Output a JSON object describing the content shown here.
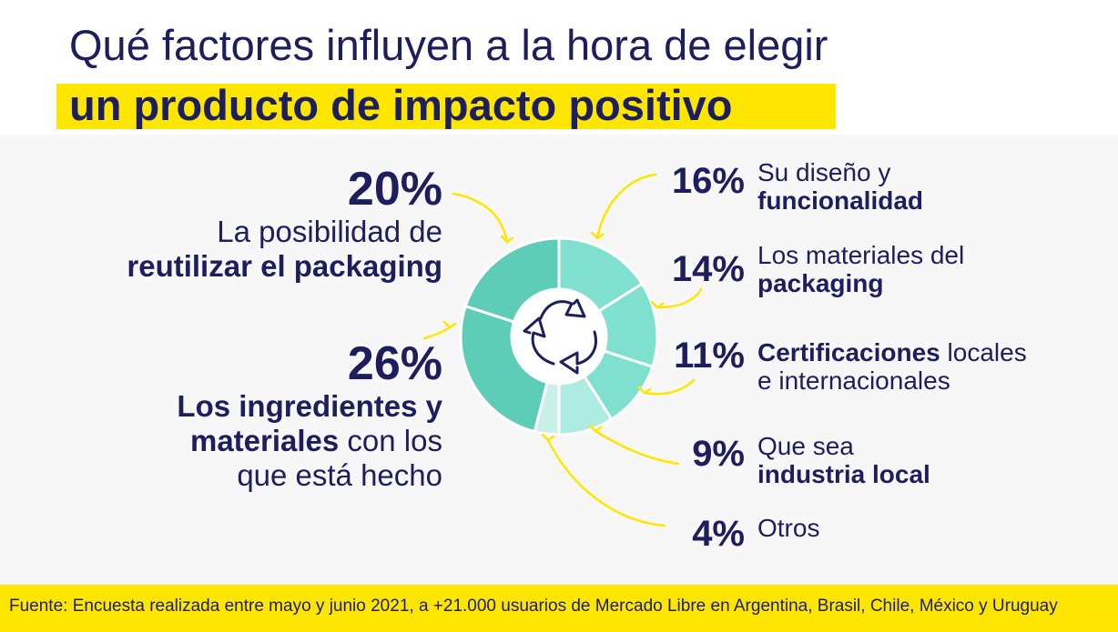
{
  "title": {
    "line1": "Qué factores influyen a la hora de elegir",
    "line2": "un producto de impacto positivo"
  },
  "colors": {
    "navy": "#1d1e5e",
    "yellow": "#ffe600",
    "teal_dark": "#5ecdb7",
    "teal_mid": "#7fe0d0",
    "teal_light": "#aeebe1",
    "teal_pale": "#c9f1ea"
  },
  "chart_data": {
    "type": "pie",
    "title": "Qué factores influyen a la hora de elegir un producto de impacto positivo",
    "categories": [
      "Su diseño y funcionalidad",
      "Los materiales del packaging",
      "Certificaciones locales e internacionales",
      "Que sea industria local",
      "Otros",
      "Los ingredientes y materiales con los que está hecho",
      "La posibilidad de reutilizar el packaging"
    ],
    "values": [
      16,
      14,
      11,
      9,
      4,
      26,
      20
    ],
    "unit": "%",
    "donut": true
  },
  "labels": {
    "reuse": {
      "pct": "20%",
      "line1": "La posibilidad de",
      "line2": "reutilizar el packaging"
    },
    "ingredients": {
      "pct": "26%",
      "bold1": "Los ingredientes y",
      "bold2": "materiales",
      "rest2": " con los",
      "line3": "que está hecho"
    },
    "design": {
      "pct": "16%",
      "line1": "Su diseño y",
      "line2": "funcionalidad"
    },
    "materials": {
      "pct": "14%",
      "line1": "Los materiales del",
      "line2": "packaging"
    },
    "certs": {
      "pct": "11%",
      "bold1": "Certificaciones",
      "rest1": " locales",
      "line2": "e internacionales"
    },
    "local": {
      "pct": "9%",
      "line1": "Que sea",
      "line2": "industria local"
    },
    "other": {
      "pct": "4%",
      "line1": "Otros"
    }
  },
  "footer": "Fuente: Encuesta realizada entre mayo y junio 2021, a +21.000 usuarios de Mercado Libre en Argentina, Brasil, Chile, México y Uruguay"
}
